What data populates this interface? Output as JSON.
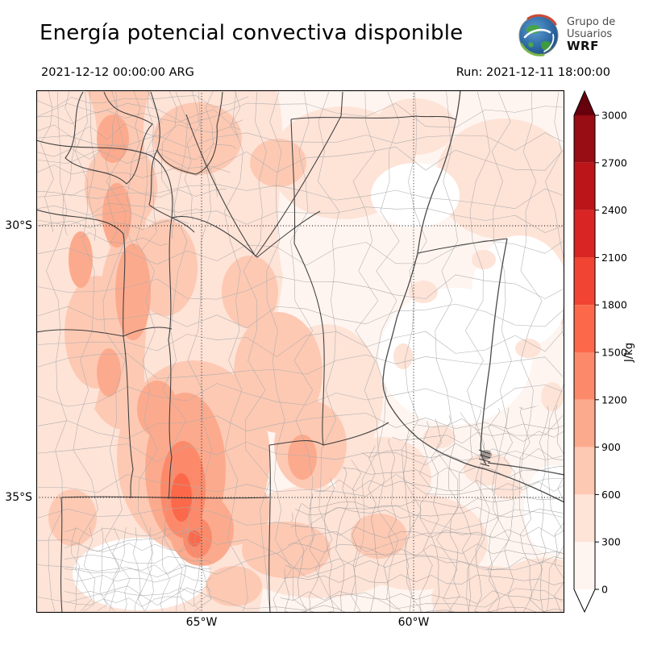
{
  "header": {
    "title": "Energía potencial convectiva disponible",
    "logo": {
      "line1": "Grupo de",
      "line2": "Usuarios",
      "line3": "WRF"
    }
  },
  "times": {
    "valid": "2021-12-12 00:00:00 ARG",
    "run": "Run: 2021-12-11 18:00:00"
  },
  "map": {
    "lat_ticks": [
      "30°S",
      "35°S"
    ],
    "lon_ticks": [
      "65°W",
      "60°W"
    ]
  },
  "colorbar": {
    "unit": "J/kg",
    "ticks": [
      "0",
      "300",
      "600",
      "900",
      "1200",
      "1500",
      "1800",
      "2100",
      "2400",
      "2700",
      "3000"
    ],
    "colors": [
      "#fff5f0",
      "#fee3d7",
      "#fdc9b3",
      "#fcaa8d",
      "#fc8a6a",
      "#fb694a",
      "#f14432",
      "#d92523",
      "#bb151a",
      "#980c13"
    ],
    "over_color": "#67000d",
    "under_color": "#ffffff"
  },
  "chart_data": {
    "type": "heatmap",
    "title": "Energía potencial convectiva disponible",
    "units": "J/kg",
    "levels": [
      0,
      300,
      600,
      900,
      1200,
      1500,
      1800,
      2100,
      2400,
      2700,
      3000
    ],
    "lat_gridlines": [
      "30°S",
      "35°S"
    ],
    "lon_gridlines": [
      "65°W",
      "60°W"
    ],
    "valid_time": "2021-12-12 00:00:00 ARG",
    "run_time": "Run: 2021-12-11 18:00:00",
    "legend_position": "right"
  }
}
